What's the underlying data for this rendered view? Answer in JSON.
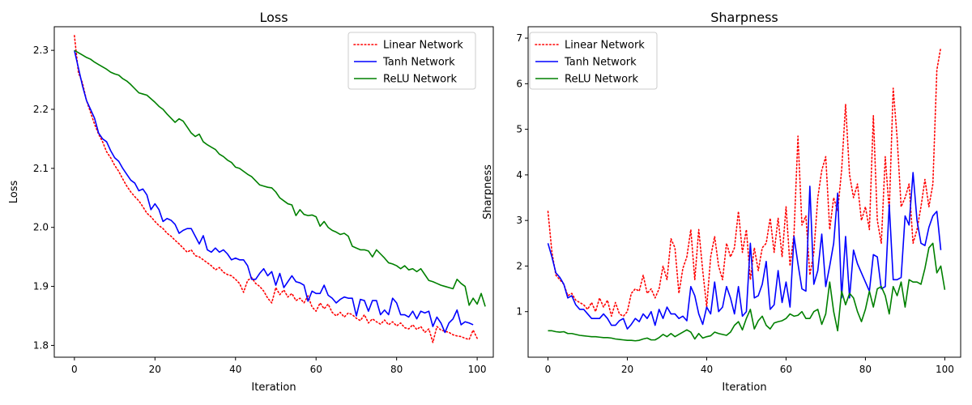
{
  "chart_data": [
    {
      "type": "line",
      "title": "Loss",
      "xlabel": "Iteration",
      "ylabel": "Loss",
      "xlim": [
        -5,
        104
      ],
      "ylim": [
        1.78,
        2.34
      ],
      "xticks": [
        0,
        20,
        40,
        60,
        80,
        100
      ],
      "yticks": [
        1.8,
        1.9,
        2.0,
        2.1,
        2.2,
        2.3
      ],
      "ytick_format": 1,
      "grid": false,
      "legend_position": "top-right",
      "series": [
        {
          "name": "Linear Network",
          "color": "#ff0000",
          "style": "dotted",
          "values": [
            2.325,
            2.262,
            2.245,
            2.215,
            2.195,
            2.175,
            2.158,
            2.145,
            2.128,
            2.118,
            2.105,
            2.095,
            2.082,
            2.07,
            2.06,
            2.052,
            2.045,
            2.035,
            2.024,
            2.018,
            2.01,
            2.003,
            1.998,
            1.99,
            1.985,
            1.978,
            1.972,
            1.965,
            1.958,
            1.962,
            1.952,
            1.95,
            1.945,
            1.94,
            1.935,
            1.928,
            1.932,
            1.924,
            1.92,
            1.918,
            1.912,
            1.905,
            1.89,
            1.91,
            1.915,
            1.905,
            1.9,
            1.892,
            1.88,
            1.872,
            1.898,
            1.886,
            1.894,
            1.882,
            1.888,
            1.876,
            1.88,
            1.872,
            1.884,
            1.865,
            1.858,
            1.872,
            1.862,
            1.87,
            1.856,
            1.85,
            1.856,
            1.848,
            1.855,
            1.852,
            1.846,
            1.842,
            1.852,
            1.838,
            1.845,
            1.84,
            1.836,
            1.843,
            1.835,
            1.84,
            1.833,
            1.838,
            1.83,
            1.828,
            1.835,
            1.827,
            1.832,
            1.822,
            1.828,
            1.805,
            1.832,
            1.826,
            1.824,
            1.822,
            1.818,
            1.816,
            1.815,
            1.812,
            1.81,
            1.826,
            1.812
          ]
        },
        {
          "name": "Tanh Network",
          "color": "#0000ff",
          "style": "solid",
          "values": [
            2.3,
            2.27,
            2.24,
            2.215,
            2.2,
            2.185,
            2.16,
            2.15,
            2.145,
            2.13,
            2.118,
            2.112,
            2.1,
            2.09,
            2.08,
            2.075,
            2.062,
            2.065,
            2.055,
            2.03,
            2.04,
            2.03,
            2.01,
            2.015,
            2.012,
            2.005,
            1.99,
            1.995,
            1.998,
            1.998,
            1.985,
            1.972,
            1.986,
            1.962,
            1.958,
            1.965,
            1.958,
            1.962,
            1.955,
            1.945,
            1.948,
            1.945,
            1.945,
            1.935,
            1.912,
            1.912,
            1.922,
            1.93,
            1.918,
            1.925,
            1.902,
            1.922,
            1.898,
            1.908,
            1.918,
            1.908,
            1.906,
            1.902,
            1.875,
            1.892,
            1.888,
            1.888,
            1.902,
            1.885,
            1.88,
            1.872,
            1.878,
            1.882,
            1.88,
            1.88,
            1.85,
            1.878,
            1.876,
            1.858,
            1.876,
            1.876,
            1.852,
            1.86,
            1.852,
            1.88,
            1.872,
            1.852,
            1.852,
            1.848,
            1.858,
            1.845,
            1.858,
            1.855,
            1.858,
            1.832,
            1.848,
            1.838,
            1.822,
            1.838,
            1.845,
            1.86,
            1.835,
            1.84,
            1.838,
            1.835
          ]
        },
        {
          "name": "ReLU Network",
          "color": "#008000",
          "style": "solid",
          "values": [
            2.3,
            2.296,
            2.292,
            2.288,
            2.285,
            2.28,
            2.276,
            2.272,
            2.268,
            2.263,
            2.26,
            2.258,
            2.252,
            2.248,
            2.242,
            2.235,
            2.228,
            2.226,
            2.224,
            2.218,
            2.212,
            2.205,
            2.2,
            2.192,
            2.185,
            2.178,
            2.184,
            2.18,
            2.17,
            2.16,
            2.154,
            2.158,
            2.145,
            2.14,
            2.136,
            2.132,
            2.124,
            2.12,
            2.114,
            2.11,
            2.102,
            2.1,
            2.095,
            2.09,
            2.086,
            2.079,
            2.072,
            2.07,
            2.068,
            2.067,
            2.06,
            2.05,
            2.045,
            2.04,
            2.038,
            2.02,
            2.03,
            2.022,
            2.02,
            2.021,
            2.018,
            2.002,
            2.01,
            2.0,
            1.995,
            1.992,
            1.988,
            1.99,
            1.985,
            1.968,
            1.965,
            1.962,
            1.962,
            1.96,
            1.95,
            1.962,
            1.955,
            1.948,
            1.94,
            1.938,
            1.935,
            1.93,
            1.935,
            1.928,
            1.93,
            1.925,
            1.93,
            1.92,
            1.91,
            1.908,
            1.905,
            1.902,
            1.9,
            1.898,
            1.896,
            1.912,
            1.905,
            1.9,
            1.868,
            1.88,
            1.87,
            1.888,
            1.866
          ]
        }
      ]
    },
    {
      "type": "line",
      "title": "Sharpness",
      "xlabel": "Iteration",
      "ylabel": "Sharpness",
      "xlim": [
        -5,
        104
      ],
      "ylim": [
        0.0,
        7.25
      ],
      "xticks": [
        0,
        20,
        40,
        60,
        80,
        100
      ],
      "yticks": [
        1,
        2,
        3,
        4,
        5,
        6,
        7
      ],
      "ytick_format": 0,
      "grid": false,
      "legend_position": "top-left",
      "series": [
        {
          "name": "Linear Network",
          "color": "#ff0000",
          "style": "dotted",
          "values": [
            3.2,
            2.3,
            1.8,
            1.7,
            1.6,
            1.35,
            1.4,
            1.25,
            1.2,
            1.15,
            1.05,
            1.2,
            1.0,
            1.3,
            1.1,
            1.25,
            0.9,
            1.2,
            0.95,
            0.9,
            1.0,
            1.4,
            1.5,
            1.45,
            1.8,
            1.4,
            1.5,
            1.3,
            1.5,
            2.0,
            1.7,
            2.6,
            2.4,
            1.4,
            1.95,
            2.2,
            2.8,
            1.7,
            2.8,
            1.9,
            1.1,
            2.2,
            2.65,
            2.0,
            1.7,
            2.5,
            2.2,
            2.4,
            3.2,
            2.3,
            2.8,
            1.7,
            2.4,
            1.9,
            2.4,
            2.5,
            3.05,
            2.3,
            3.05,
            2.2,
            3.3,
            2.0,
            2.7,
            4.85,
            2.9,
            3.1,
            1.8,
            2.3,
            3.5,
            4.1,
            4.4,
            2.8,
            3.5,
            3.2,
            4.1,
            5.55,
            4.0,
            3.5,
            3.8,
            3.0,
            3.3,
            2.8,
            5.3,
            3.0,
            2.5,
            4.4,
            3.2,
            5.9,
            4.8,
            3.3,
            3.5,
            3.8,
            2.5,
            2.8,
            3.3,
            3.9,
            3.3,
            3.8,
            6.3,
            6.8
          ]
        },
        {
          "name": "Tanh Network",
          "color": "#0000ff",
          "style": "solid",
          "values": [
            2.5,
            2.2,
            1.85,
            1.75,
            1.6,
            1.3,
            1.35,
            1.15,
            1.05,
            1.05,
            0.95,
            0.85,
            0.85,
            0.85,
            0.95,
            0.85,
            0.7,
            0.7,
            0.8,
            0.85,
            0.62,
            0.72,
            0.85,
            0.78,
            0.95,
            0.85,
            1.0,
            0.7,
            1.05,
            0.85,
            1.1,
            0.95,
            0.95,
            0.85,
            0.9,
            0.8,
            1.55,
            1.35,
            0.95,
            0.72,
            1.1,
            0.95,
            1.65,
            1.0,
            1.1,
            1.55,
            1.3,
            0.95,
            1.55,
            0.9,
            1.0,
            2.5,
            1.3,
            1.35,
            1.6,
            2.1,
            1.05,
            1.15,
            1.9,
            1.2,
            1.65,
            1.1,
            2.65,
            2.05,
            1.5,
            1.45,
            3.75,
            1.6,
            1.9,
            2.7,
            1.55,
            2.0,
            2.5,
            3.6,
            1.3,
            2.65,
            1.3,
            2.35,
            2.05,
            1.85,
            1.65,
            1.45,
            2.25,
            2.2,
            1.5,
            1.55,
            3.35,
            1.7,
            1.7,
            1.75,
            3.1,
            2.9,
            4.05,
            3.0,
            2.5,
            2.45,
            2.85,
            3.1,
            3.2,
            2.35
          ]
        },
        {
          "name": "ReLU Network",
          "color": "#008000",
          "style": "solid",
          "values": [
            0.58,
            0.58,
            0.56,
            0.55,
            0.56,
            0.52,
            0.52,
            0.5,
            0.48,
            0.47,
            0.46,
            0.45,
            0.45,
            0.44,
            0.43,
            0.43,
            0.42,
            0.4,
            0.39,
            0.38,
            0.37,
            0.37,
            0.36,
            0.37,
            0.4,
            0.42,
            0.38,
            0.38,
            0.43,
            0.5,
            0.45,
            0.52,
            0.45,
            0.5,
            0.55,
            0.6,
            0.55,
            0.4,
            0.52,
            0.42,
            0.45,
            0.47,
            0.55,
            0.52,
            0.5,
            0.48,
            0.55,
            0.7,
            0.78,
            0.6,
            0.85,
            1.05,
            0.62,
            0.8,
            0.9,
            0.7,
            0.62,
            0.75,
            0.78,
            0.8,
            0.85,
            0.95,
            0.9,
            0.92,
            1.0,
            0.85,
            0.85,
            1.0,
            1.05,
            0.72,
            0.95,
            1.65,
            1.0,
            0.58,
            1.45,
            1.15,
            1.4,
            1.3,
            1.0,
            0.78,
            1.05,
            1.45,
            1.1,
            1.5,
            1.55,
            1.35,
            0.95,
            1.55,
            1.35,
            1.65,
            1.1,
            1.7,
            1.65,
            1.65,
            1.6,
            1.95,
            2.4,
            2.5,
            1.85,
            2.0,
            1.48
          ]
        }
      ]
    }
  ]
}
